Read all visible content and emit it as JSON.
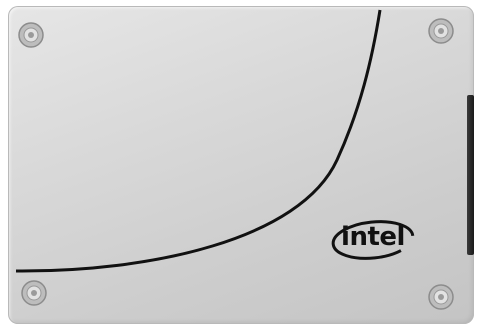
{
  "product": {
    "brand_logo_text": "intel",
    "colors": {
      "casing": "#d4d4d4",
      "curve": "#111111",
      "logo": "#111111"
    }
  }
}
